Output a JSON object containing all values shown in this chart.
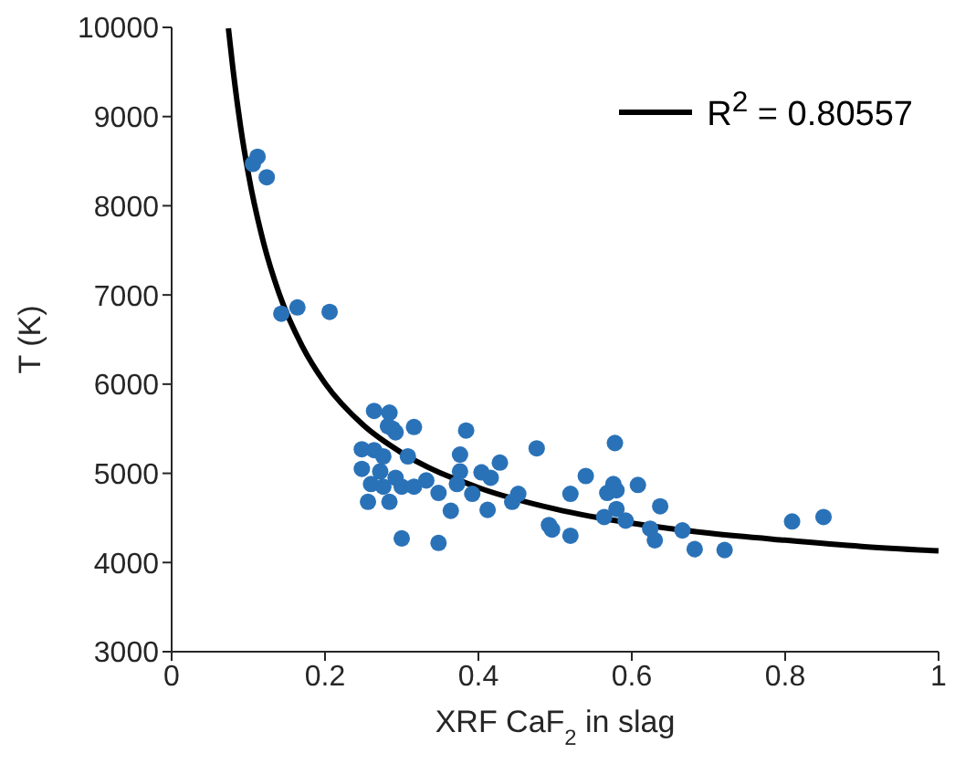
{
  "chart_data": {
    "type": "scatter",
    "xlabel": "XRF CaF$_{2}$ in slag",
    "ylabel": "T (K)",
    "xlim": [
      0,
      1
    ],
    "xticks": [
      0,
      0.2,
      0.4,
      0.6,
      0.8,
      1
    ],
    "ylim": [
      3000,
      10000
    ],
    "yticks": [
      3000,
      4000,
      5000,
      6000,
      7000,
      8000,
      9000,
      10000
    ],
    "grid": false,
    "legend": "top right",
    "series": [
      {
        "color": "#2a72b8",
        "marker": "circle",
        "x": [
          0.112,
          0.106,
          0.124,
          0.143,
          0.164,
          0.206,
          0.264,
          0.284,
          0.288,
          0.282,
          0.292,
          0.316,
          0.384,
          0.248,
          0.264,
          0.276,
          0.308,
          0.376,
          0.428,
          0.476,
          0.578,
          0.248,
          0.272,
          0.292,
          0.332,
          0.376,
          0.404,
          0.416,
          0.26,
          0.276,
          0.3,
          0.316,
          0.348,
          0.372,
          0.392,
          0.452,
          0.54,
          0.576,
          0.608,
          0.256,
          0.284,
          0.364,
          0.412,
          0.444,
          0.52,
          0.568,
          0.492,
          0.496,
          0.52,
          0.3,
          0.348,
          0.58,
          0.564,
          0.58,
          0.637,
          0.592,
          0.624,
          0.63,
          0.666,
          0.682,
          0.721,
          0.809,
          0.85
        ],
        "values": [
          8550,
          8470,
          8320,
          6790,
          6860,
          6810,
          5700,
          5680,
          5500,
          5530,
          5460,
          5520,
          5480,
          5270,
          5260,
          5190,
          5190,
          5210,
          5120,
          5280,
          5340,
          5050,
          5020,
          4950,
          4920,
          5020,
          5010,
          4950,
          4880,
          4850,
          4850,
          4850,
          4780,
          4880,
          4770,
          4770,
          4970,
          4880,
          4870,
          4680,
          4680,
          4580,
          4590,
          4680,
          4770,
          4780,
          4420,
          4370,
          4300,
          4270,
          4220,
          4600,
          4510,
          4810,
          4630,
          4470,
          4380,
          4250,
          4360,
          4150,
          4140,
          4460,
          4510
        ]
      },
      {
        "type": "line",
        "name": "R$^{2}$ = 0.80557",
        "color": "#000000",
        "marker": "none",
        "line_style": "solid",
        "x": [
          0.074,
          0.08,
          0.09,
          0.1,
          0.12,
          0.14,
          0.17,
          0.2,
          0.25,
          0.3,
          0.4,
          0.5,
          0.6,
          0.7,
          0.8,
          0.9,
          1.0
        ],
        "values": [
          9990,
          9530,
          8880,
          8360,
          7580,
          7020,
          6430,
          6010,
          5540,
          5230,
          4840,
          4600,
          4440,
          4330,
          4250,
          4180,
          4130
        ]
      }
    ]
  }
}
